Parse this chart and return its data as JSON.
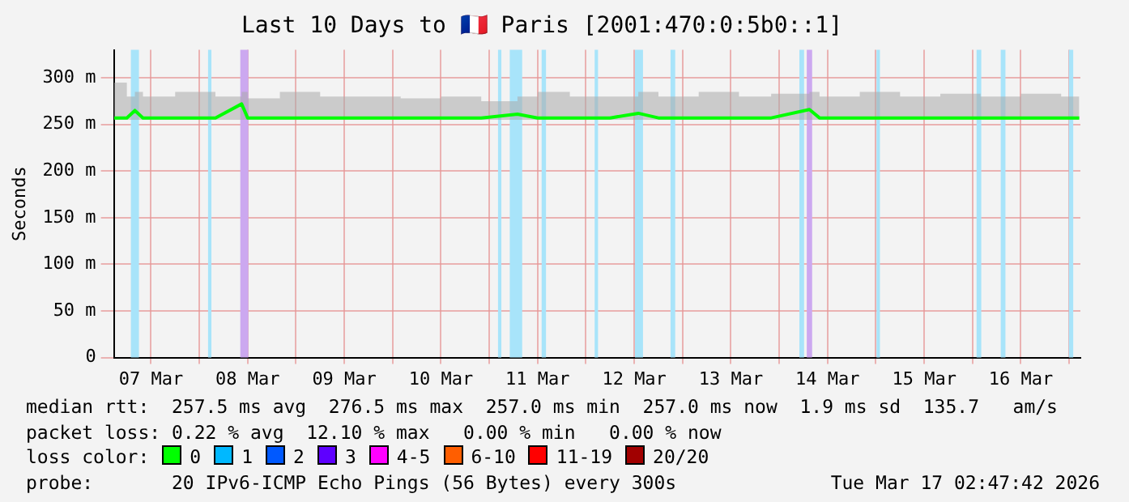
{
  "chart_data": {
    "type": "line",
    "title": "Last 10 Days to 🇫🇷 Paris [2001:470:0:5b0::1]",
    "ylabel": "Seconds",
    "xlim": [
      "2026-03-07T02:47",
      "2026-03-17T02:47"
    ],
    "xticks": [
      {
        "value": "2026-03-07T12:00",
        "label": "07 Mar"
      },
      {
        "value": "2026-03-08T00:00",
        "label": null
      },
      {
        "value": "2026-03-08T12:00",
        "label": "08 Mar"
      },
      {
        "value": "2026-03-09T00:00",
        "label": null
      },
      {
        "value": "2026-03-09T12:00",
        "label": "09 Mar"
      },
      {
        "value": "2026-03-10T00:00",
        "label": null
      },
      {
        "value": "2026-03-10T12:00",
        "label": "10 Mar"
      },
      {
        "value": "2026-03-11T00:00",
        "label": null
      },
      {
        "value": "2026-03-11T12:00",
        "label": "11 Mar"
      },
      {
        "value": "2026-03-12T00:00",
        "label": null
      },
      {
        "value": "2026-03-12T12:00",
        "label": "12 Mar"
      },
      {
        "value": "2026-03-13T00:00",
        "label": null
      },
      {
        "value": "2026-03-13T12:00",
        "label": "13 Mar"
      },
      {
        "value": "2026-03-14T00:00",
        "label": null
      },
      {
        "value": "2026-03-14T12:00",
        "label": "14 Mar"
      },
      {
        "value": "2026-03-15T00:00",
        "label": null
      },
      {
        "value": "2026-03-15T12:00",
        "label": "15 Mar"
      },
      {
        "value": "2026-03-16T00:00",
        "label": null
      },
      {
        "value": "2026-03-16T12:00",
        "label": "16 Mar"
      },
      {
        "value": "2026-03-17T00:00",
        "label": null
      }
    ],
    "ylim": [
      0,
      330
    ],
    "yticks": [
      0,
      {
        "value": 50,
        "label": "50 m"
      },
      {
        "value": 100,
        "label": "100 m"
      },
      {
        "value": 150,
        "label": "150 m"
      },
      {
        "value": 200,
        "label": "200 m"
      },
      {
        "value": 250,
        "label": "250 m"
      },
      {
        "value": 300,
        "label": "300 m"
      }
    ],
    "grid": true,
    "legend": false,
    "x": [
      "2026-03-07T02:50",
      "2026-03-07T06:00",
      "2026-03-07T08:00",
      "2026-03-07T10:00",
      "2026-03-07T18:00",
      "2026-03-08T04:00",
      "2026-03-08T10:30",
      "2026-03-08T12:00",
      "2026-03-08T20:00",
      "2026-03-09T06:00",
      "2026-03-09T16:00",
      "2026-03-10T02:00",
      "2026-03-10T12:00",
      "2026-03-10T22:00",
      "2026-03-11T07:00",
      "2026-03-11T12:00",
      "2026-03-11T20:00",
      "2026-03-12T06:00",
      "2026-03-12T13:00",
      "2026-03-12T18:00",
      "2026-03-13T04:00",
      "2026-03-13T14:00",
      "2026-03-13T22:00",
      "2026-03-14T07:30",
      "2026-03-14T10:00",
      "2026-03-14T20:00",
      "2026-03-15T06:00",
      "2026-03-15T16:00",
      "2026-03-16T02:00",
      "2026-03-16T12:00",
      "2026-03-16T22:00",
      "2026-03-17T02:30"
    ],
    "series": [
      {
        "color": "#00ff00",
        "values": [
          257,
          257,
          265,
          257,
          257,
          257,
          272,
          257,
          257,
          257,
          257,
          257,
          257,
          257,
          261,
          257,
          257,
          257,
          262,
          257,
          257,
          257,
          257,
          266,
          257,
          257,
          257,
          257,
          257,
          257,
          257,
          257
        ],
        "lower": [
          255,
          255,
          255,
          255,
          255,
          255,
          255,
          255,
          255,
          255,
          255,
          255,
          255,
          255,
          255,
          255,
          255,
          255,
          255,
          255,
          255,
          255,
          255,
          255,
          255,
          255,
          255,
          255,
          255,
          255,
          255,
          255
        ],
        "upper": [
          295,
          280,
          285,
          280,
          285,
          280,
          285,
          278,
          285,
          280,
          280,
          278,
          280,
          275,
          280,
          285,
          280,
          280,
          285,
          280,
          285,
          280,
          283,
          285,
          280,
          285,
          280,
          283,
          280,
          283,
          280,
          285
        ]
      }
    ],
    "bands": [
      {
        "axis": "x",
        "from": "2026-03-07T07:00",
        "to": "2026-03-07T09:00",
        "color": "#a8e4fa"
      },
      {
        "axis": "x",
        "from": "2026-03-08T02:10",
        "to": "2026-03-08T03:00",
        "color": "#a8e4fa"
      },
      {
        "axis": "x",
        "from": "2026-03-08T10:10",
        "to": "2026-03-08T12:10",
        "color": "#cca8f0"
      },
      {
        "axis": "x",
        "from": "2026-03-11T02:10",
        "to": "2026-03-11T03:00",
        "color": "#a8e4fa"
      },
      {
        "axis": "x",
        "from": "2026-03-11T05:05",
        "to": "2026-03-11T08:10",
        "color": "#a8e4fa"
      },
      {
        "axis": "x",
        "from": "2026-03-11T13:00",
        "to": "2026-03-11T14:05",
        "color": "#a8e4fa"
      },
      {
        "axis": "x",
        "from": "2026-03-12T02:10",
        "to": "2026-03-12T03:00",
        "color": "#a8e4fa"
      },
      {
        "axis": "x",
        "from": "2026-03-12T12:10",
        "to": "2026-03-12T14:10",
        "color": "#a8e4fa"
      },
      {
        "axis": "x",
        "from": "2026-03-12T21:00",
        "to": "2026-03-12T22:10",
        "color": "#a8e4fa"
      },
      {
        "axis": "x",
        "from": "2026-03-14T05:00",
        "to": "2026-03-14T06:10",
        "color": "#a8e4fa"
      },
      {
        "axis": "x",
        "from": "2026-03-14T06:50",
        "to": "2026-03-14T08:10",
        "color": "#cca8f0"
      },
      {
        "axis": "x",
        "from": "2026-03-15T00:10",
        "to": "2026-03-15T01:00",
        "color": "#a8e4fa"
      },
      {
        "axis": "x",
        "from": "2026-03-16T01:00",
        "to": "2026-03-16T02:10",
        "color": "#a8e4fa"
      },
      {
        "axis": "x",
        "from": "2026-03-16T07:00",
        "to": "2026-03-16T08:10",
        "color": "#a8e4fa"
      },
      {
        "axis": "x",
        "from": "2026-03-16T23:55",
        "to": "2026-03-17T01:00",
        "color": "#a8e4fa"
      }
    ],
    "annotations": [
      "median rtt:  257.5 ms avg  276.5 ms max  257.0 ms min  257.0 ms now  1.9 ms sd  135.7   am/s",
      "packet loss: 0.22 % avg  12.10 % max   0.00 % min   0.00 % now",
      "loss color:",
      "0",
      "1",
      "2",
      "3",
      "4-5",
      "6-10",
      "11-19",
      "20/20",
      "probe:       20 IPv6-ICMP Echo Pings (56 Bytes) every 300s",
      "Tue Mar 17 02:47:42 2026"
    ]
  }
}
